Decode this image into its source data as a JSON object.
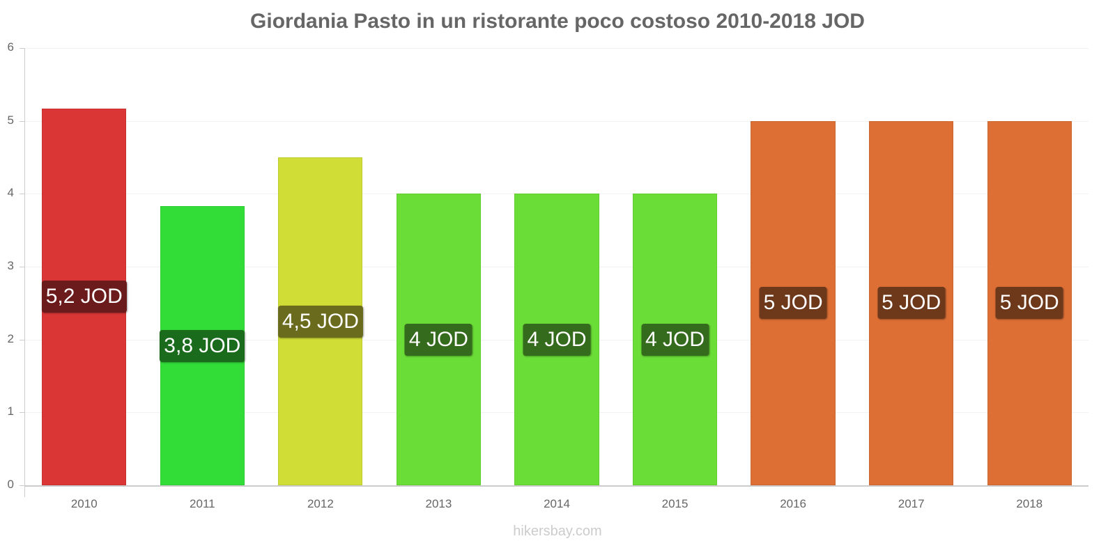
{
  "chart_data": {
    "type": "bar",
    "title": "Giordania Pasto in un ristorante poco costoso 2010-2018 JOD",
    "xlabel": "",
    "ylabel": "",
    "ylim": [
      0,
      6
    ],
    "grid": true,
    "legend": "none",
    "categories": [
      "2010",
      "2011",
      "2012",
      "2013",
      "2014",
      "2015",
      "2016",
      "2017",
      "2018"
    ],
    "values": [
      5.17,
      3.83,
      4.5,
      4,
      4,
      4,
      5,
      5,
      5
    ],
    "data_labels": [
      "5,2 JOD",
      "3,8 JOD",
      "4,5 JOD",
      "4 JOD",
      "4 JOD",
      "4 JOD",
      "5 JOD",
      "5 JOD",
      "5 JOD"
    ],
    "yticks": [
      "0",
      "1",
      "2",
      "3",
      "4",
      "5",
      "6"
    ],
    "bar_colors": [
      "#da3636",
      "#33dd38",
      "#cfdd36",
      "#6bdd37",
      "#6bdd37",
      "#6bdd37",
      "#dd6f35",
      "#dd6f35",
      "#dd6f35"
    ],
    "label_colors": [
      "#6b1b1b",
      "#1b6b1d",
      "#6b6b1d",
      "#356b1d",
      "#356b1d",
      "#356b1d",
      "#6e381b",
      "#6e381b",
      "#6e381b"
    ]
  },
  "watermark": "hikersbay.com"
}
